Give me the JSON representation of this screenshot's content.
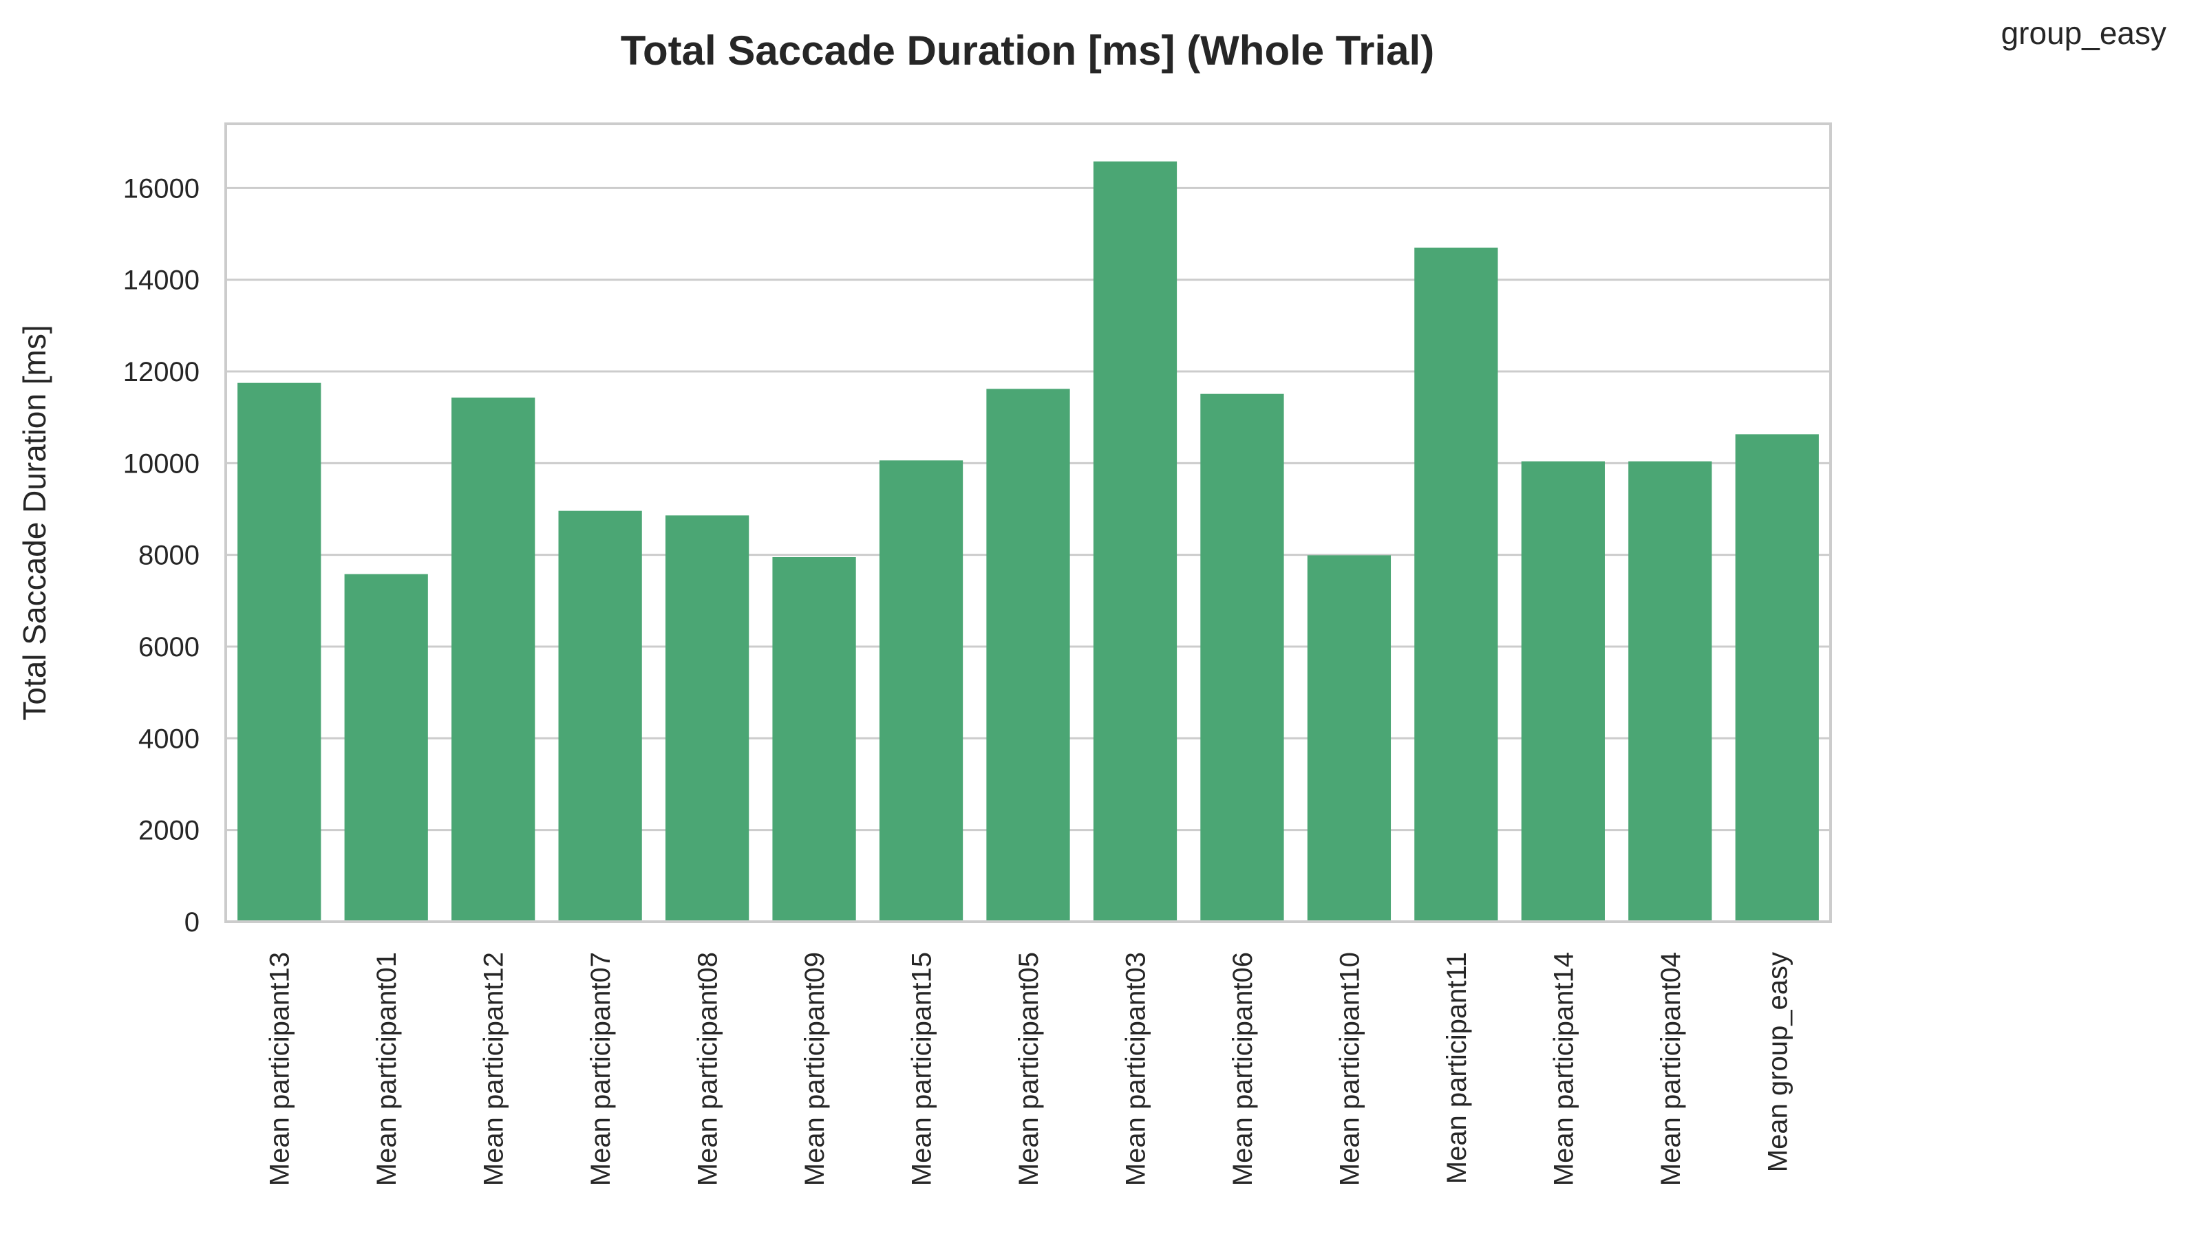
{
  "chart_data": {
    "type": "bar",
    "title": "Total Saccade Duration [ms] (Whole Trial)",
    "legend": {
      "text": "group_easy",
      "placement": "top-right"
    },
    "xlabel": "",
    "ylabel": "Total Saccade Duration [ms]",
    "ylim": [
      0,
      17400
    ],
    "yticks": [
      0,
      2000,
      4000,
      6000,
      8000,
      10000,
      12000,
      14000,
      16000
    ],
    "grid": "horizontal",
    "bar_color": "#4ba674",
    "categories": [
      "Mean participant13",
      "Mean participant01",
      "Mean participant12",
      "Mean participant07",
      "Mean participant08",
      "Mean participant09",
      "Mean participant15",
      "Mean participant05",
      "Mean participant03",
      "Mean participant06",
      "Mean participant10",
      "Mean participant11",
      "Mean participant14",
      "Mean participant04",
      "Mean group_easy"
    ],
    "values": [
      11750,
      7580,
      11430,
      8960,
      8860,
      7950,
      10060,
      11620,
      16580,
      11510,
      7990,
      14700,
      10040,
      10040,
      10630
    ]
  }
}
